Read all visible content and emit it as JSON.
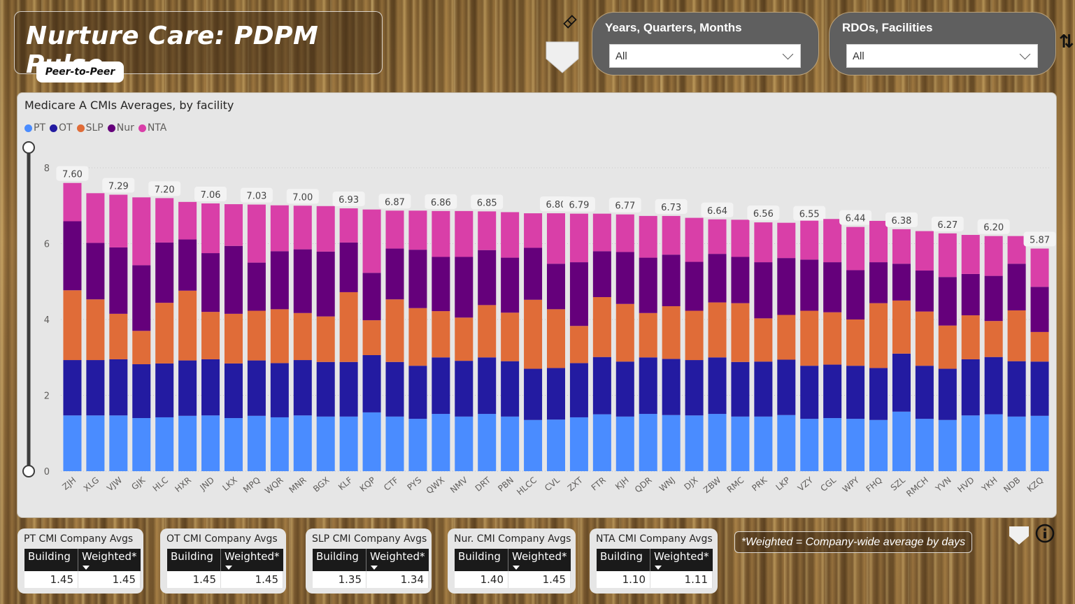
{
  "header": {
    "title": "Nurture Care: PDPM Pulse",
    "subtitle_pill": "Peer-to-Peer"
  },
  "icons": {
    "eraser": "eraser-icon",
    "bookmark": "bookmark-shield-icon",
    "sort": "sort-arrows-icon",
    "info": "info-icon"
  },
  "slicers": [
    {
      "label": "Years, Quarters, Months",
      "value": "All"
    },
    {
      "label": "RDOs, Facilities",
      "value": "All"
    }
  ],
  "colors": {
    "PT": "#4a8cff",
    "OT": "#231ba1",
    "SLP": "#e06c38",
    "Nur": "#65007b",
    "NTA": "#d93fa8"
  },
  "chart_data": {
    "type": "bar",
    "stacked": true,
    "title": "Medicare A CMIs Averages, by facility",
    "xlabel": "",
    "ylabel": "",
    "ylim": [
      0,
      8
    ],
    "yticks": [
      0,
      2,
      4,
      6,
      8
    ],
    "grid": true,
    "legend": "top-left",
    "categories": [
      "ZJH",
      "XLG",
      "VJW",
      "GJK",
      "HLC",
      "HXR",
      "JND",
      "LKX",
      "MPQ",
      "WQR",
      "MNR",
      "BGX",
      "KLF",
      "KQP",
      "CTF",
      "PYS",
      "QWX",
      "NMV",
      "DRT",
      "PBN",
      "HLCC",
      "CVL",
      "ZXT",
      "FTR",
      "KJH",
      "QDR",
      "WNJ",
      "DJX",
      "ZBW",
      "RMC",
      "PRK",
      "LKP",
      "VZY",
      "CGL",
      "WPY",
      "FHQ",
      "SZL",
      "RMCH",
      "YVN",
      "HVD",
      "YKH",
      "NDB",
      "KZQ"
    ],
    "series": [
      {
        "name": "PT",
        "values": [
          1.47,
          1.47,
          1.47,
          1.4,
          1.42,
          1.46,
          1.47,
          1.4,
          1.46,
          1.42,
          1.47,
          1.44,
          1.44,
          1.55,
          1.44,
          1.38,
          1.51,
          1.44,
          1.51,
          1.44,
          1.35,
          1.36,
          1.42,
          1.5,
          1.44,
          1.51,
          1.48,
          1.47,
          1.51,
          1.44,
          1.44,
          1.48,
          1.38,
          1.4,
          1.38,
          1.35,
          1.57,
          1.38,
          1.35,
          1.47,
          1.5,
          1.44,
          1.46
        ]
      },
      {
        "name": "OT",
        "values": [
          1.46,
          1.46,
          1.48,
          1.42,
          1.42,
          1.46,
          1.48,
          1.44,
          1.46,
          1.43,
          1.46,
          1.44,
          1.44,
          1.51,
          1.44,
          1.4,
          1.49,
          1.47,
          1.49,
          1.46,
          1.35,
          1.36,
          1.43,
          1.51,
          1.45,
          1.49,
          1.48,
          1.46,
          1.49,
          1.44,
          1.45,
          1.46,
          1.4,
          1.41,
          1.4,
          1.37,
          1.53,
          1.4,
          1.35,
          1.48,
          1.51,
          1.46,
          1.43
        ]
      },
      {
        "name": "SLP",
        "values": [
          1.84,
          1.6,
          1.2,
          0.88,
          1.6,
          1.84,
          1.25,
          1.31,
          1.31,
          1.42,
          1.24,
          1.2,
          1.84,
          0.92,
          1.65,
          1.52,
          1.22,
          1.14,
          1.38,
          1.28,
          1.82,
          1.55,
          0.98,
          1.58,
          1.52,
          1.17,
          1.39,
          1.3,
          1.45,
          1.55,
          1.14,
          1.18,
          1.45,
          1.38,
          1.22,
          1.71,
          1.4,
          1.43,
          1.14,
          1.16,
          0.95,
          1.34,
          0.78
        ]
      },
      {
        "name": "Nur",
        "values": [
          1.82,
          1.49,
          1.75,
          1.73,
          1.59,
          1.35,
          1.55,
          1.79,
          1.27,
          1.53,
          1.68,
          1.71,
          1.31,
          1.25,
          1.34,
          1.54,
          1.43,
          1.6,
          1.45,
          1.45,
          1.37,
          1.2,
          1.68,
          1.21,
          1.37,
          1.46,
          1.36,
          1.29,
          1.28,
          1.22,
          1.48,
          1.5,
          1.35,
          1.32,
          1.3,
          1.08,
          0.97,
          1.08,
          1.28,
          1.09,
          1.19,
          1.23,
          1.19
        ]
      },
      {
        "name": "NTA",
        "values": [
          1.01,
          1.31,
          1.39,
          1.79,
          1.17,
          0.99,
          1.31,
          1.1,
          1.53,
          1.21,
          1.15,
          1.2,
          0.9,
          1.67,
          1.0,
          1.03,
          1.21,
          1.21,
          1.02,
          1.2,
          0.91,
          1.33,
          1.28,
          0.99,
          0.99,
          1.1,
          1.02,
          1.16,
          0.91,
          0.98,
          1.05,
          0.93,
          1.07,
          1.14,
          1.14,
          1.09,
          0.91,
          1.04,
          1.15,
          1.03,
          1.05,
          0.73,
          1.01
        ]
      }
    ],
    "totals": [
      7.6,
      7.33,
      7.29,
      7.22,
      7.2,
      7.1,
      7.06,
      7.04,
      7.03,
      7.01,
      7.0,
      6.99,
      6.93,
      6.9,
      6.87,
      6.87,
      6.86,
      6.86,
      6.85,
      6.83,
      6.8,
      6.8,
      6.79,
      6.79,
      6.77,
      6.73,
      6.73,
      6.68,
      6.64,
      6.63,
      6.56,
      6.55,
      6.55,
      6.55,
      6.44,
      6.6,
      6.38,
      6.33,
      6.27,
      6.23,
      6.2,
      6.2,
      5.87
    ],
    "data_labels": {
      "ZJH": "7.60",
      "VJW": "7.29",
      "HLC": "7.20",
      "JND": "7.06",
      "MPQ": "7.03",
      "MNR": "7.00",
      "KLF": "6.93",
      "CTF": "6.87",
      "QWX": "6.86",
      "DRT": "6.85",
      "CVL": "6.80",
      "ZXT": "6.79",
      "KJH": "6.77",
      "WNJ": "6.73",
      "ZBW": "6.64",
      "PRK": "6.56",
      "VZY": "6.55",
      "WPY": "6.44",
      "SZL": "6.38",
      "YVN": "6.27",
      "YKH": "6.20",
      "KZQ": "5.87"
    }
  },
  "cards": [
    {
      "title": "PT CMI Company Avgs",
      "col1": "Building",
      "col2": "Weighted*",
      "building": "1.45",
      "weighted": "1.45"
    },
    {
      "title": "OT CMI Company Avgs",
      "col1": "Building",
      "col2": "Weighted*",
      "building": "1.45",
      "weighted": "1.45"
    },
    {
      "title": "SLP CMI Company Avgs",
      "col1": "Building",
      "col2": "Weighted*",
      "building": "1.35",
      "weighted": "1.34"
    },
    {
      "title": "Nur. CMI Company Avgs",
      "col1": "Building",
      "col2": "Weighted*",
      "building": "1.40",
      "weighted": "1.45"
    },
    {
      "title": "NTA CMI Company Avgs",
      "col1": "Building",
      "col2": "Weighted*",
      "building": "1.10",
      "weighted": "1.11"
    }
  ],
  "footnote": "*Weighted = Company-wide average by days"
}
